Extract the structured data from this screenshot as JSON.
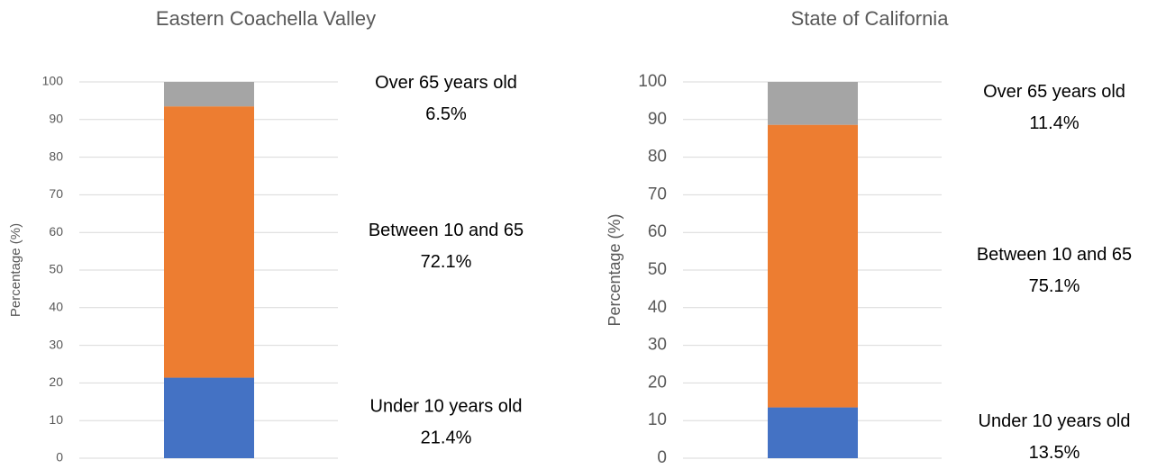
{
  "chart_data": [
    {
      "type": "bar",
      "stacked": true,
      "title": "Eastern Coachella Valley",
      "ylabel": "Percentage (%)",
      "categories": [
        null
      ],
      "ylim": [
        0,
        100
      ],
      "yticks": [
        0,
        10,
        20,
        30,
        40,
        50,
        60,
        70,
        80,
        90,
        100
      ],
      "grid": true,
      "series": [
        {
          "name": "Under 10 years old",
          "color": "#4472c4",
          "values": [
            21.4
          ],
          "value_labels": [
            "21.4%"
          ]
        },
        {
          "name": "Between 10 and 65",
          "color": "#ed7d31",
          "values": [
            72.1
          ],
          "value_labels": [
            "72.1%"
          ]
        },
        {
          "name": "Over 65 years old",
          "color": "#a5a5a5",
          "values": [
            6.5
          ],
          "value_labels": [
            "6.5%"
          ]
        }
      ]
    },
    {
      "type": "bar",
      "stacked": true,
      "title": "State of California",
      "ylabel": "Percentage (%)",
      "categories": [
        null
      ],
      "ylim": [
        0,
        100
      ],
      "yticks": [
        0,
        10,
        20,
        30,
        40,
        50,
        60,
        70,
        80,
        90,
        100
      ],
      "grid": true,
      "series": [
        {
          "name": "Under 10 years old",
          "color": "#4472c4",
          "values": [
            13.5
          ],
          "value_labels": [
            "13.5%"
          ]
        },
        {
          "name": "Between 10 and 65",
          "color": "#ed7d31",
          "values": [
            75.1
          ],
          "value_labels": [
            "75.1%"
          ]
        },
        {
          "name": "Over 65 years old",
          "color": "#a5a5a5",
          "values": [
            11.4
          ],
          "value_labels": [
            "11.4%"
          ]
        }
      ]
    }
  ]
}
